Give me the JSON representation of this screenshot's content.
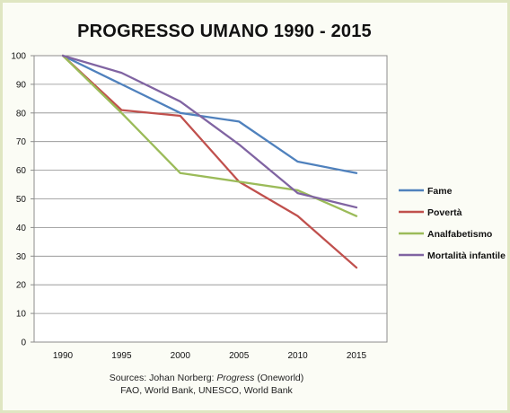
{
  "chart_data": {
    "type": "line",
    "title": "PROGRESSO UMANO 1990 - 2015",
    "source_line1_prefix": "Sources: Johan Norberg: ",
    "source_line1_italic": "Progress",
    "source_line1_suffix": " (Oneworld)",
    "source_line2": "FAO, World Bank, UNESCO, World Bank",
    "x": [
      "1990",
      "1995",
      "2000",
      "2005",
      "2010",
      "2015"
    ],
    "ylim": [
      0,
      100
    ],
    "yticks": [
      0,
      10,
      20,
      30,
      40,
      50,
      60,
      70,
      80,
      90,
      100
    ],
    "grid": "horizontal",
    "legend_position": "right",
    "series": [
      {
        "name": "Fame",
        "color": "#4f81bd",
        "values": [
          100,
          90,
          80,
          77,
          63,
          59
        ]
      },
      {
        "name": "Povertà",
        "color": "#c0504d",
        "values": [
          100,
          81,
          79,
          56,
          44,
          26
        ]
      },
      {
        "name": "Analfabetismo",
        "color": "#9bbb59",
        "values": [
          100,
          80,
          59,
          56,
          53,
          44
        ]
      },
      {
        "name": "Mortalità infantile",
        "color": "#8064a2",
        "values": [
          100,
          94,
          84,
          69,
          52,
          47
        ]
      }
    ]
  }
}
